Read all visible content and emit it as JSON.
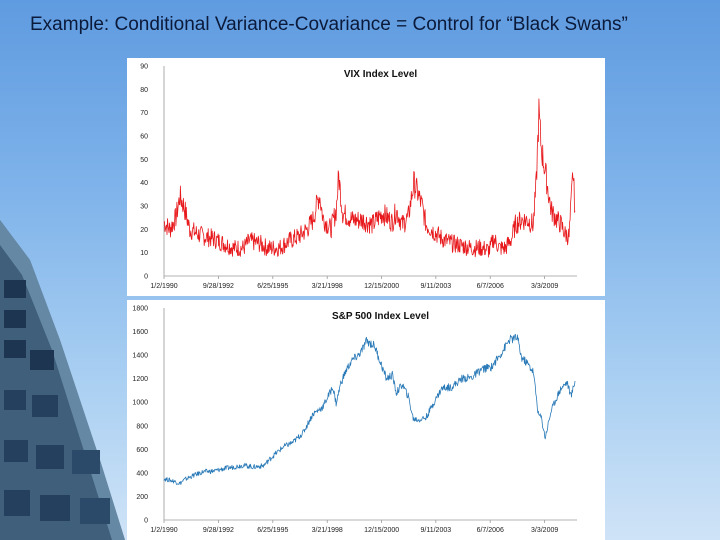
{
  "slide": {
    "title": "Example: Conditional Variance-Covariance = Control for “Black Swans”"
  },
  "colors": {
    "vix_line": "#e8191c",
    "spx_line": "#2a7ab8",
    "axis": "#9a9a9a"
  },
  "chart_data": [
    {
      "type": "line",
      "title": "VIX Index Level",
      "xlabel": "",
      "ylabel": "",
      "ylim": [
        0,
        90
      ],
      "y_ticks": [
        "0",
        "10",
        "20",
        "30",
        "40",
        "50",
        "60",
        "70",
        "80",
        "90"
      ],
      "x_ticks": [
        "1/2/1990",
        "9/28/1992",
        "6/25/1995",
        "3/21/1998",
        "12/15/2000",
        "9/11/2003",
        "6/7/2006",
        "3/3/2009"
      ],
      "x_tick_years": [
        1990.0,
        1992.74,
        1995.48,
        1998.22,
        2000.96,
        2003.69,
        2006.43,
        2009.17
      ],
      "xlim": [
        1990.0,
        2010.8
      ],
      "series": [
        {
          "name": "VIX",
          "x": [
            1990.0,
            1990.3,
            1990.6,
            1990.8,
            1991.0,
            1991.3,
            1991.7,
            1992.0,
            1992.5,
            1993.0,
            1993.5,
            1994.0,
            1994.3,
            1994.8,
            1995.2,
            1995.8,
            1996.3,
            1996.8,
            1997.2,
            1997.5,
            1997.83,
            1998.0,
            1998.4,
            1998.67,
            1998.8,
            1999.0,
            1999.5,
            2000.0,
            2000.5,
            2001.0,
            2001.5,
            2001.7,
            2002.0,
            2002.3,
            2002.58,
            2002.8,
            2003.0,
            2003.2,
            2003.6,
            2004.0,
            2004.5,
            2005.0,
            2005.5,
            2006.0,
            2006.4,
            2006.6,
            2006.9,
            2007.2,
            2007.5,
            2007.7,
            2008.0,
            2008.3,
            2008.6,
            2008.75,
            2008.88,
            2009.0,
            2009.2,
            2009.5,
            2009.8,
            2010.0,
            2010.2,
            2010.4,
            2010.5,
            2010.6,
            2010.7
          ],
          "values": [
            23,
            20,
            25,
            34,
            30,
            20,
            18,
            17,
            16,
            14,
            12,
            12,
            15,
            14,
            12,
            12,
            15,
            17,
            20,
            24,
            35,
            25,
            20,
            28,
            43,
            27,
            24,
            24,
            22,
            27,
            23,
            28,
            22,
            25,
            40,
            35,
            30,
            22,
            19,
            16,
            14,
            13,
            12,
            12,
            11,
            16,
            12,
            12,
            16,
            22,
            24,
            24,
            22,
            40,
            70,
            55,
            45,
            28,
            24,
            22,
            18,
            17,
            30,
            45,
            28
          ]
        }
      ]
    },
    {
      "type": "line",
      "title": "S&P 500 Index Level",
      "xlabel": "",
      "ylabel": "",
      "ylim": [
        0,
        1800
      ],
      "y_ticks": [
        "0",
        "200",
        "400",
        "600",
        "800",
        "1000",
        "1200",
        "1400",
        "1600",
        "1800"
      ],
      "x_ticks": [
        "1/2/1990",
        "9/28/1992",
        "6/25/1995",
        "3/21/1998",
        "12/15/2000",
        "9/11/2003",
        "6/7/2006",
        "3/3/2009"
      ],
      "x_tick_years": [
        1990.0,
        1992.74,
        1995.48,
        1998.22,
        2000.96,
        2003.69,
        2006.43,
        2009.17
      ],
      "xlim": [
        1990.0,
        2010.8
      ],
      "series": [
        {
          "name": "S&P 500",
          "x": [
            1990.0,
            1990.5,
            1990.8,
            1991.0,
            1991.5,
            1992.0,
            1992.5,
            1993.0,
            1993.5,
            1994.0,
            1994.5,
            1995.0,
            1995.5,
            1996.0,
            1996.5,
            1997.0,
            1997.5,
            1998.0,
            1998.5,
            1998.67,
            1998.9,
            1999.2,
            1999.5,
            1999.8,
            2000.0,
            2000.2,
            2000.6,
            2000.9,
            2001.2,
            2001.5,
            2001.7,
            2002.0,
            2002.3,
            2002.55,
            2002.8,
            2003.2,
            2003.6,
            2004.0,
            2004.5,
            2005.0,
            2005.5,
            2006.0,
            2006.5,
            2007.0,
            2007.4,
            2007.8,
            2008.0,
            2008.3,
            2008.6,
            2008.85,
            2009.0,
            2009.2,
            2009.5,
            2009.8,
            2010.0,
            2010.3,
            2010.5,
            2010.7
          ],
          "values": [
            350,
            330,
            310,
            340,
            380,
            410,
            415,
            435,
            450,
            465,
            450,
            460,
            545,
            620,
            660,
            740,
            900,
            960,
            1130,
            990,
            1160,
            1280,
            1360,
            1400,
            1450,
            1520,
            1480,
            1340,
            1200,
            1230,
            1080,
            1150,
            1050,
            860,
            850,
            870,
            1000,
            1120,
            1130,
            1200,
            1210,
            1280,
            1300,
            1420,
            1530,
            1550,
            1380,
            1330,
            1260,
            900,
            870,
            700,
            930,
            1050,
            1120,
            1170,
            1050,
            1180
          ]
        }
      ]
    }
  ]
}
